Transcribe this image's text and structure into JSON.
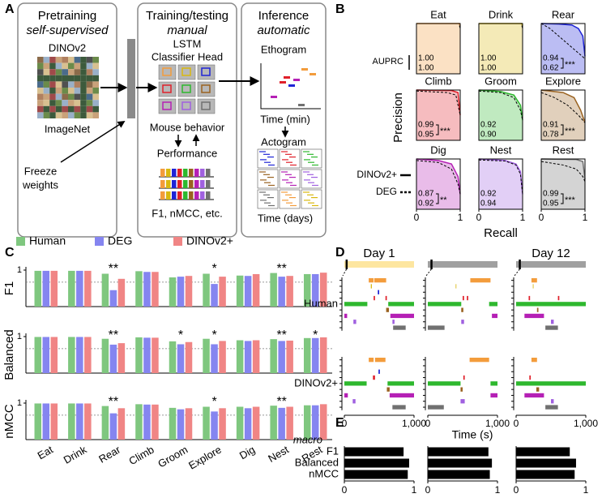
{
  "panel_labels": [
    "A",
    "B",
    "C",
    "D",
    "E"
  ],
  "diagram": {
    "pretraining": {
      "title": "Pretraining",
      "subtitle": "self-supervised",
      "model": "DINOv2",
      "dataset": "ImageNet",
      "freeze": [
        "Freeze",
        "weights"
      ]
    },
    "training": {
      "title": "Training/testing",
      "subtitle": "manual",
      "model": [
        "LSTM",
        "Classifier Head"
      ],
      "behavior": "Mouse behavior",
      "performance": "Performance",
      "metrics": "F1, nMCC, etc."
    },
    "inference": {
      "title": "Inference",
      "subtitle": "automatic",
      "ethogram": "Ethogram",
      "ethogram_axis": "Time (min)",
      "actogram": "Actogram",
      "actogram_axis": "Time (days)"
    }
  },
  "chart_data": [
    {
      "type": "pr_grid",
      "y_label": "Precision",
      "x_label": "Recall",
      "xlim": [
        0,
        1
      ],
      "ylim": [
        0,
        1
      ],
      "xticks": [
        0,
        1
      ],
      "metric_label": "AUPRC",
      "legend": [
        {
          "name": "DINOv2+",
          "style": "solid"
        },
        {
          "name": "DEG",
          "style": "dashed"
        }
      ],
      "panels": [
        {
          "name": "Eat",
          "color": "#f39c3c",
          "auprc": [
            1,
            1
          ],
          "value_labels": [
            "1.00",
            "1.00"
          ],
          "dinov2": {
            "recall": [
              0,
              0.98,
              1
            ],
            "precision": [
              1,
              1,
              0.95
            ]
          },
          "deg": {
            "recall": [
              0,
              0.97,
              1
            ],
            "precision": [
              1,
              1,
              0.9
            ]
          }
        },
        {
          "name": "Drink",
          "color": "#d9b80f",
          "auprc": [
            1,
            1
          ],
          "value_labels": [
            "1.00",
            "1.00"
          ],
          "dinov2": {
            "recall": [
              0,
              0.98,
              1
            ],
            "precision": [
              1,
              1,
              0.95
            ]
          },
          "deg": {
            "recall": [
              0,
              0.97,
              1
            ],
            "precision": [
              1,
              1,
              0.9
            ]
          }
        },
        {
          "name": "Rear",
          "color": "#1f24d6",
          "auprc": [
            0.94,
            0.62
          ],
          "value_labels": [
            "0.94",
            "0.62"
          ],
          "significance": "***",
          "dinov2": {
            "recall": [
              0,
              0.4,
              0.7,
              0.85,
              0.95,
              1
            ],
            "precision": [
              1,
              0.99,
              0.97,
              0.9,
              0.75,
              0.35
            ]
          },
          "deg": {
            "recall": [
              0,
              0.2,
              0.4,
              0.6,
              0.8,
              1
            ],
            "precision": [
              1,
              0.9,
              0.75,
              0.6,
              0.45,
              0.3
            ]
          }
        },
        {
          "name": "Climb",
          "color": "#e0202a",
          "auprc": [
            0.99,
            0.95
          ],
          "value_labels": [
            "0.99",
            "0.95"
          ],
          "significance": "***",
          "dinov2": {
            "recall": [
              0,
              0.8,
              0.95,
              1
            ],
            "precision": [
              1,
              0.99,
              0.95,
              0.5
            ]
          },
          "deg": {
            "recall": [
              0,
              0.7,
              0.9,
              1
            ],
            "precision": [
              0.98,
              0.95,
              0.9,
              0.5
            ]
          }
        },
        {
          "name": "Groom",
          "color": "#2eb82e",
          "auprc": [
            0.92,
            0.9
          ],
          "value_labels": [
            "0.92",
            "0.90"
          ],
          "dinov2": {
            "recall": [
              0,
              0.5,
              0.8,
              0.95,
              1
            ],
            "precision": [
              1,
              0.97,
              0.9,
              0.7,
              0.4
            ]
          },
          "deg": {
            "recall": [
              0,
              0.5,
              0.8,
              0.95,
              1
            ],
            "precision": [
              0.98,
              0.95,
              0.85,
              0.6,
              0.4
            ]
          }
        },
        {
          "name": "Explore",
          "color": "#9a6220",
          "auprc": [
            0.91,
            0.78
          ],
          "value_labels": [
            "0.91",
            "0.78"
          ],
          "significance": "***",
          "dinov2": {
            "recall": [
              0,
              0.5,
              0.75,
              0.9,
              1
            ],
            "precision": [
              1,
              0.95,
              0.85,
              0.6,
              0.35
            ]
          },
          "deg": {
            "recall": [
              0,
              0.3,
              0.6,
              0.85,
              1
            ],
            "precision": [
              0.95,
              0.85,
              0.7,
              0.5,
              0.35
            ]
          }
        },
        {
          "name": "Dig",
          "color": "#b520b5",
          "auprc": [
            0.87,
            0.92
          ],
          "value_labels": [
            "0.87",
            "0.92"
          ],
          "significance": "**",
          "dinov2": {
            "recall": [
              0,
              0.5,
              0.8,
              0.95,
              1
            ],
            "precision": [
              1,
              0.97,
              0.9,
              0.65,
              0.3
            ]
          },
          "deg": {
            "recall": [
              0,
              0.5,
              0.8,
              0.95,
              1
            ],
            "precision": [
              0.97,
              0.93,
              0.8,
              0.5,
              0.3
            ]
          }
        },
        {
          "name": "Nest",
          "color": "#a060e0",
          "auprc": [
            0.92,
            0.94
          ],
          "value_labels": [
            "0.92",
            "0.94"
          ],
          "dinov2": {
            "recall": [
              0,
              0.6,
              0.85,
              0.95,
              1
            ],
            "precision": [
              1,
              0.97,
              0.9,
              0.75,
              0.3
            ]
          },
          "deg": {
            "recall": [
              0,
              0.6,
              0.85,
              0.95,
              1
            ],
            "precision": [
              0.98,
              0.96,
              0.88,
              0.7,
              0.3
            ]
          }
        },
        {
          "name": "Rest",
          "color": "#707070",
          "auprc": [
            0.99,
            0.95
          ],
          "value_labels": [
            "0.99",
            "0.95"
          ],
          "significance": "***",
          "dinov2": {
            "recall": [
              0,
              0.8,
              0.95,
              1
            ],
            "precision": [
              1,
              0.99,
              0.95,
              0.6
            ]
          },
          "deg": {
            "recall": [
              0,
              0.5,
              0.8,
              0.95,
              1
            ],
            "precision": [
              0.95,
              0.88,
              0.8,
              0.65,
              0.55
            ]
          }
        }
      ]
    },
    {
      "type": "grouped_bar",
      "categories": [
        "Eat",
        "Drink",
        "Rear",
        "Climb",
        "Groom",
        "Explore",
        "Dig",
        "Nest",
        "Rest"
      ],
      "category_colors": [
        "#f39c3c",
        "#d9b80f",
        "#1f24d6",
        "#e0202a",
        "#2eb82e",
        "#9a6220",
        "#b520b5",
        "#a060e0",
        "#707070"
      ],
      "series": [
        {
          "name": "Human",
          "color": "#7fc77f"
        },
        {
          "name": "DEG",
          "color": "#8585f0"
        },
        {
          "name": "DINOv2+",
          "color": "#f08585"
        }
      ],
      "ylim": [
        0,
        1
      ],
      "yticks": [
        1
      ],
      "reference_line": 0.67,
      "panels": [
        {
          "label": "F1",
          "values": [
            [
              0.98,
              0.98,
              0.9,
              0.97,
              0.8,
              0.9,
              0.85,
              0.92,
              0.89
            ],
            [
              0.98,
              0.98,
              0.45,
              0.95,
              0.82,
              0.62,
              0.84,
              0.82,
              0.89
            ],
            [
              0.98,
              0.98,
              0.76,
              0.95,
              0.84,
              0.82,
              0.89,
              0.84,
              0.93
            ]
          ],
          "annotations": [
            {
              "category": 2,
              "text": "**"
            },
            {
              "category": 5,
              "text": "*"
            },
            {
              "category": 7,
              "text": "**"
            }
          ]
        },
        {
          "label": "Balanced",
          "values": [
            [
              0.99,
              0.99,
              0.94,
              0.98,
              0.87,
              0.94,
              0.9,
              0.93,
              0.96
            ],
            [
              0.99,
              0.99,
              0.78,
              0.97,
              0.79,
              0.79,
              0.88,
              0.88,
              0.96
            ],
            [
              0.99,
              0.99,
              0.82,
              0.97,
              0.85,
              0.88,
              0.9,
              0.89,
              0.98
            ]
          ],
          "annotations": [
            {
              "category": 2,
              "text": "**"
            },
            {
              "category": 4,
              "text": "*"
            },
            {
              "category": 5,
              "text": "*"
            },
            {
              "category": 7,
              "text": "**"
            },
            {
              "category": 8,
              "text": "*"
            }
          ]
        },
        {
          "label": "nMCC",
          "values": [
            [
              0.99,
              0.99,
              0.92,
              0.97,
              0.87,
              0.9,
              0.9,
              0.93,
              0.94
            ],
            [
              0.99,
              0.99,
              0.72,
              0.96,
              0.83,
              0.77,
              0.86,
              0.87,
              0.94
            ],
            [
              0.99,
              0.99,
              0.86,
              0.96,
              0.86,
              0.86,
              0.9,
              0.9,
              0.97
            ]
          ],
          "annotations": [
            {
              "category": 2,
              "text": "**"
            },
            {
              "category": 5,
              "text": "*"
            },
            {
              "category": 7,
              "text": "**"
            }
          ]
        }
      ]
    },
    {
      "type": "ethogram",
      "x_label": "Time (s)",
      "xlim": [
        0,
        1000
      ],
      "xticks": [
        0,
        {
          "value": 1000,
          "label": "1,000"
        }
      ],
      "columns": [
        {
          "title": "Day 1",
          "timeline_color": "#fde6a0",
          "marker": 0.03
        },
        {
          "timeline_color": "#a0a0a0",
          "marker": 0.05
        },
        {
          "title": "Day 12",
          "timeline_color": "#a0a0a0",
          "marker": 0.05
        }
      ],
      "rows": [
        {
          "label": "Human",
          "events": [
            [
              [
                0,
                350,
                420
              ],
              [
                0,
                430,
                600
              ],
              [
                1,
                380,
                395
              ],
              [
                2,
                480,
                500
              ],
              [
                3,
                420,
                440
              ],
              [
                3,
                590,
                610
              ],
              [
                4,
                0,
                330
              ],
              [
                4,
                630,
                1000
              ],
              [
                5,
                600,
                640
              ],
              [
                6,
                0,
                40
              ],
              [
                6,
                660,
                1000
              ],
              [
                7,
                130,
                170
              ],
              [
                7,
                690,
                720
              ],
              [
                8,
                700,
                880
              ]
            ],
            [
              [
                0,
                610,
                900
              ],
              [
                1,
                400,
                410
              ],
              [
                3,
                500,
                520
              ],
              [
                3,
                560,
                580
              ],
              [
                4,
                0,
                480
              ],
              [
                4,
                880,
                1000
              ],
              [
                5,
                480,
                510
              ],
              [
                6,
                920,
                1000
              ],
              [
                7,
                480,
                520
              ],
              [
                8,
                0,
                240
              ]
            ],
            [
              [
                0,
                220,
                300
              ],
              [
                1,
                240,
                250
              ],
              [
                3,
                180,
                200
              ],
              [
                3,
                600,
                620
              ],
              [
                4,
                0,
                1000
              ],
              [
                5,
                300,
                320
              ],
              [
                6,
                120,
                400
              ],
              [
                7,
                500,
                540
              ],
              [
                8,
                420,
                600
              ]
            ]
          ]
        },
        {
          "label": "DINOv2+",
          "events": [
            [
              [
                0,
                350,
                420
              ],
              [
                0,
                440,
                590
              ],
              [
                2,
                490,
                510
              ],
              [
                3,
                410,
                440
              ],
              [
                4,
                0,
                320
              ],
              [
                4,
                620,
                1000
              ],
              [
                5,
                610,
                650
              ],
              [
                6,
                0,
                50
              ],
              [
                6,
                650,
                1000
              ],
              [
                7,
                120,
                160
              ],
              [
                8,
                690,
                880
              ]
            ],
            [
              [
                0,
                600,
                880
              ],
              [
                3,
                510,
                530
              ],
              [
                4,
                0,
                470
              ],
              [
                4,
                900,
                1000
              ],
              [
                5,
                470,
                500
              ],
              [
                6,
                900,
                1000
              ],
              [
                7,
                470,
                530
              ],
              [
                8,
                0,
                230
              ]
            ],
            [
              [
                0,
                220,
                300
              ],
              [
                3,
                190,
                210
              ],
              [
                4,
                0,
                1000
              ],
              [
                5,
                290,
                330
              ],
              [
                6,
                120,
                400
              ],
              [
                7,
                500,
                540
              ],
              [
                8,
                420,
                600
              ]
            ]
          ]
        }
      ]
    },
    {
      "type": "hbar",
      "label": "macro",
      "categories": [
        "F1",
        "Balanced",
        "nMCC"
      ],
      "color": "#000000",
      "xlim": [
        0,
        1
      ],
      "xticks": [
        0,
        1
      ],
      "columns": [
        [
          0.85,
          0.93,
          0.91
        ],
        [
          0.87,
          0.92,
          0.89
        ],
        [
          0.77,
          0.86,
          0.84
        ]
      ]
    }
  ]
}
